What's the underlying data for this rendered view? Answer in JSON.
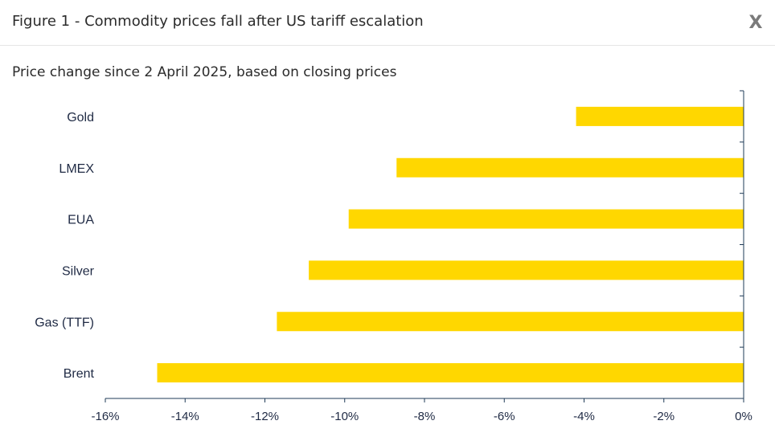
{
  "dialog": {
    "title": "Figure 1 - Commodity prices fall after US tariff escalation",
    "close_label": "X"
  },
  "colors": {
    "bar": "#ffd700",
    "axis": "#1f3b57",
    "text": "#1f2a44"
  },
  "chart_data": {
    "type": "bar",
    "orientation": "horizontal",
    "title": "",
    "subtitle": "Price change since 2 April 2025, based on closing prices",
    "xlabel": "",
    "ylabel": "",
    "categories": [
      "Gold",
      "LMEX",
      "EUA",
      "Silver",
      "Gas (TTF)",
      "Brent"
    ],
    "values": [
      -4.2,
      -8.7,
      -9.9,
      -10.9,
      -11.7,
      -14.7
    ],
    "unit": "%",
    "xlim": [
      -16,
      0
    ],
    "x_ticks": [
      -16,
      -14,
      -12,
      -10,
      -8,
      -6,
      -4,
      -2,
      0
    ],
    "x_tick_labels": [
      "-16%",
      "-14%",
      "-12%",
      "-10%",
      "-8%",
      "-6%",
      "-4%",
      "-2%",
      "0%"
    ],
    "grid": false,
    "legend": "none"
  }
}
